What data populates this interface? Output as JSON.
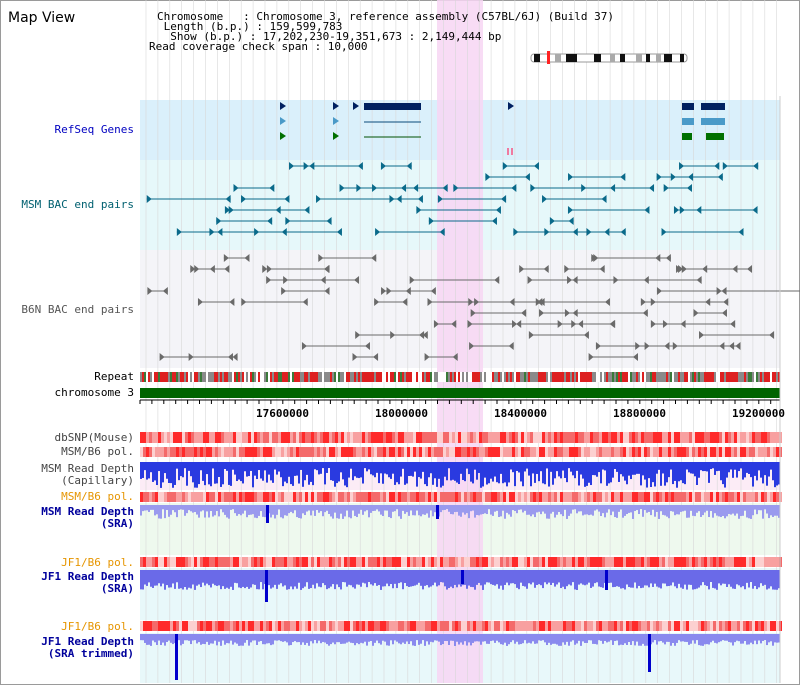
{
  "panel": {
    "title": "Map View"
  },
  "info": {
    "chromosome_label": "Chromosome   : Chromosome 3, reference assembly (C57BL/6J) (Build 37)",
    "length_label": " Length (b.p.) : 159,599,783",
    "show_label": "  Show (b.p.) : 17,202,230-19,351,673 : 2,149,444 bp",
    "coverage_label": "Read coverage check span : 10,000"
  },
  "colors": {
    "refseq_bg": "#daf0fb",
    "msm_bac_bg": "#e6f8fa",
    "b6n_bac_bg": "#f4f4f8",
    "highlight": "#f7d6f3",
    "gene": "#002060",
    "chrom_bar": "#006400",
    "snp_track": "#f06060",
    "depth_blue": "#0000ff",
    "orange": "#e69500",
    "navy": "#00009c"
  },
  "tracks": {
    "refseq_genes": "RefSeq Genes",
    "msm_bac": "MSM BAC end pairs",
    "b6n_bac": "B6N BAC end pairs",
    "repeat": "Repeat",
    "chromosome": "chromosome 3",
    "dbsnp": "dbSNP(Mouse)",
    "msm_b6_pol_1": "MSM/B6 pol.",
    "msm_read_depth_cap": "MSM Read Depth\n   (Capillary)",
    "msm_b6_pol_2": "MSM/B6 pol.",
    "msm_read_depth_sra": "MSM Read Depth\n      (SRA)",
    "jf1_b6_pol_1": "JF1/B6 pol.",
    "jf1_read_depth_sra": "JF1 Read Depth\n      (SRA)",
    "jf1_b6_pol_2": "JF1/B6 pol.",
    "jf1_read_depth_trim": "JF1 Read Depth\n(SRA trimmed)"
  },
  "axis": {
    "ticks": [
      "17600000",
      "18000000",
      "18400000",
      "18800000",
      "19200000"
    ]
  }
}
